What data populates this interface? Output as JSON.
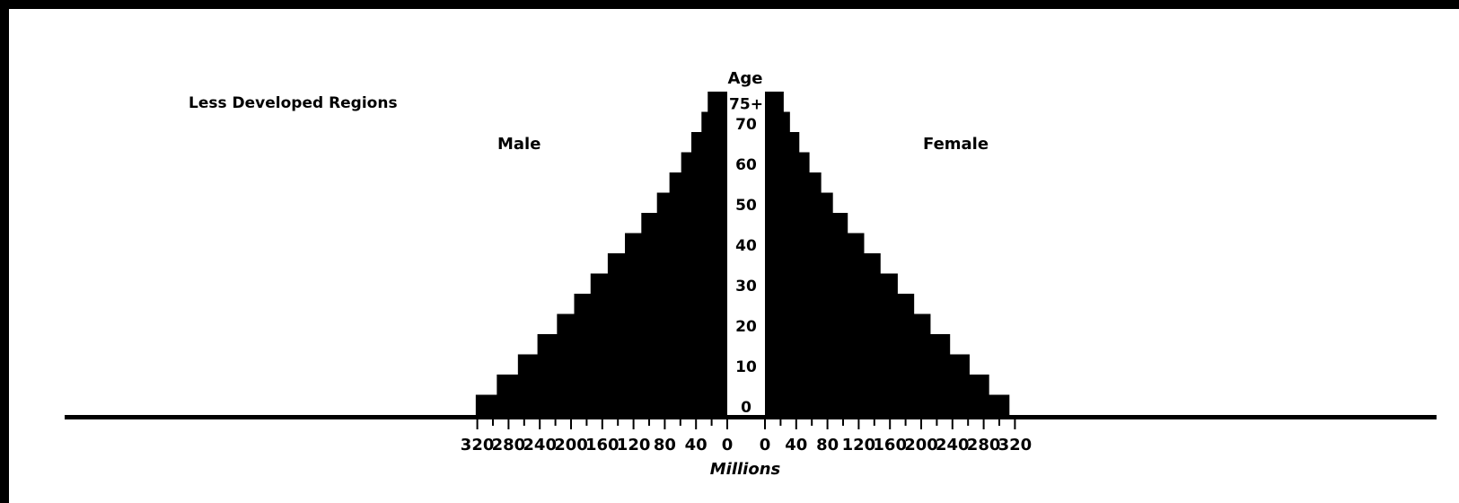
{
  "chart_data": {
    "type": "population_pyramid",
    "title": "Less Developed Regions",
    "left_label": "Male",
    "right_label": "Female",
    "y_axis_title": "Age",
    "x_axis_title": "Millions",
    "age_tick_labels": [
      "0",
      "10",
      "20",
      "30",
      "40",
      "50",
      "60",
      "70",
      "75+"
    ],
    "x_tick_labels_left": [
      "320",
      "280",
      "240",
      "200",
      "160",
      "120",
      "80",
      "40",
      "0"
    ],
    "x_tick_labels_right": [
      "0",
      "40",
      "80",
      "120",
      "160",
      "200",
      "240",
      "280",
      "320"
    ],
    "xlim": [
      0,
      340
    ],
    "age_groups": [
      "0-4",
      "5-9",
      "10-14",
      "15-19",
      "20-24",
      "25-29",
      "30-34",
      "35-39",
      "40-44",
      "45-49",
      "50-54",
      "55-59",
      "60-64",
      "65-69",
      "70-74",
      "75+"
    ],
    "series": [
      {
        "name": "Male",
        "values": [
          322,
          295,
          268,
          243,
          218,
          196,
          175,
          153,
          131,
          110,
          90,
          74,
          59,
          46,
          33,
          25
        ]
      },
      {
        "name": "Female",
        "values": [
          313,
          287,
          262,
          237,
          212,
          191,
          170,
          148,
          127,
          106,
          87,
          72,
          57,
          44,
          32,
          24
        ]
      }
    ],
    "colors": {
      "fill": "#000000",
      "background": "#ffffff"
    }
  }
}
